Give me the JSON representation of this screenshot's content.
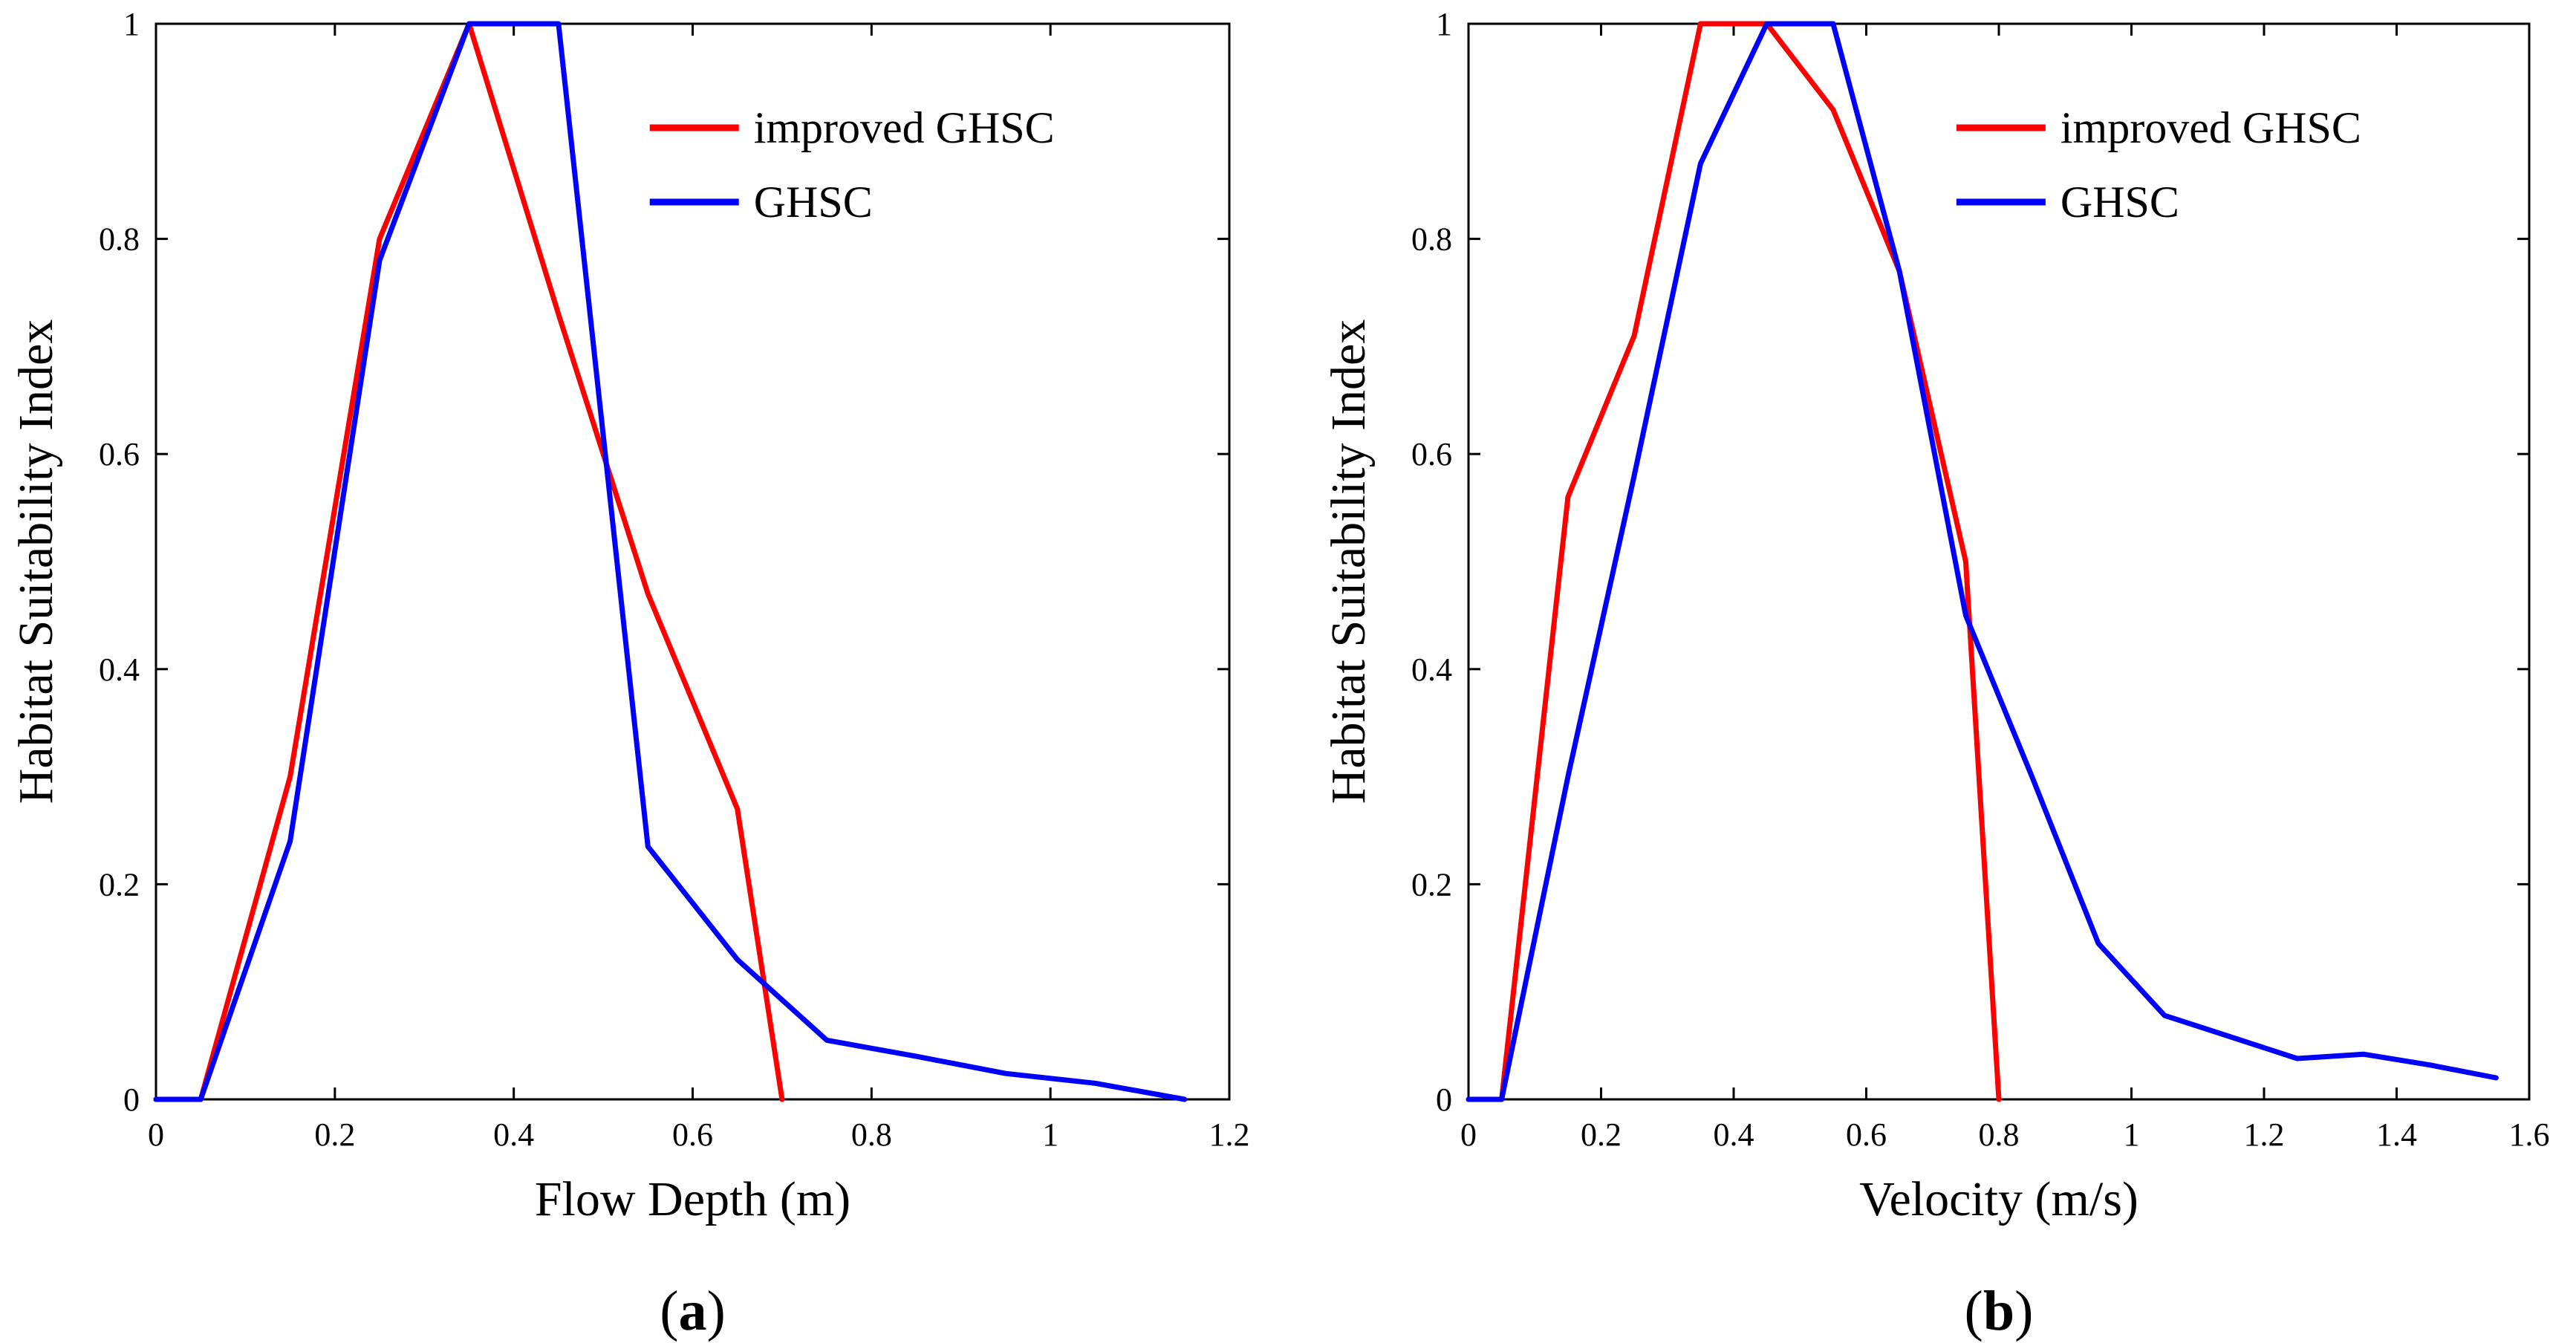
{
  "chart_data": [
    {
      "type": "line",
      "panel_label": "a",
      "xlabel": "Flow Depth (m)",
      "ylabel": "Habitat Suitability Index",
      "xlim": [
        0,
        1.2
      ],
      "ylim": [
        0,
        1
      ],
      "xticks": [
        "0",
        "0.2",
        "0.4",
        "0.6",
        "0.8",
        "1",
        "1.2"
      ],
      "yticks": [
        "0",
        "0.2",
        "0.4",
        "0.6",
        "0.8",
        "1"
      ],
      "legend_position": "top-right",
      "series": [
        {
          "name": "improved GHSC",
          "color": "#ff0000",
          "x": [
            0,
            0.05,
            0.15,
            0.25,
            0.35,
            0.45,
            0.55,
            0.65,
            0.7
          ],
          "y": [
            0,
            0,
            0.3,
            0.8,
            1.0,
            0.73,
            0.47,
            0.27,
            0
          ]
        },
        {
          "name": "GHSC",
          "color": "#0000ff",
          "x": [
            0,
            0.05,
            0.15,
            0.25,
            0.35,
            0.45,
            0.55,
            0.65,
            0.75,
            0.85,
            0.95,
            1.05,
            1.15
          ],
          "y": [
            0,
            0,
            0.24,
            0.78,
            1.0,
            1.0,
            0.235,
            0.13,
            0.055,
            0.04,
            0.024,
            0.015,
            0
          ]
        }
      ]
    },
    {
      "type": "line",
      "panel_label": "b",
      "xlabel": "Velocity (m/s)",
      "ylabel": "Habitat Suitability Index",
      "xlim": [
        0,
        1.6
      ],
      "ylim": [
        0,
        1
      ],
      "xticks": [
        "0",
        "0.2",
        "0.4",
        "0.6",
        "0.8",
        "1",
        "1.2",
        "1.4",
        "1.6"
      ],
      "yticks": [
        "0",
        "0.2",
        "0.4",
        "0.6",
        "0.8",
        "1"
      ],
      "legend_position": "top-right",
      "series": [
        {
          "name": "improved GHSC",
          "color": "#ff0000",
          "x": [
            0,
            0.05,
            0.15,
            0.25,
            0.35,
            0.45,
            0.55,
            0.65,
            0.75,
            0.8
          ],
          "y": [
            0,
            0,
            0.56,
            0.71,
            1.0,
            1.0,
            0.92,
            0.77,
            0.5,
            0
          ]
        },
        {
          "name": "GHSC",
          "color": "#0000ff",
          "x": [
            0,
            0.05,
            0.15,
            0.25,
            0.35,
            0.45,
            0.55,
            0.65,
            0.75,
            0.85,
            0.95,
            1.05,
            1.15,
            1.25,
            1.35,
            1.45,
            1.55
          ],
          "y": [
            0,
            0,
            0.3,
            0.58,
            0.87,
            1.0,
            1.0,
            0.77,
            0.45,
            0.3,
            0.145,
            0.078,
            0.058,
            0.038,
            0.042,
            0.032,
            0.02
          ]
        }
      ]
    }
  ]
}
